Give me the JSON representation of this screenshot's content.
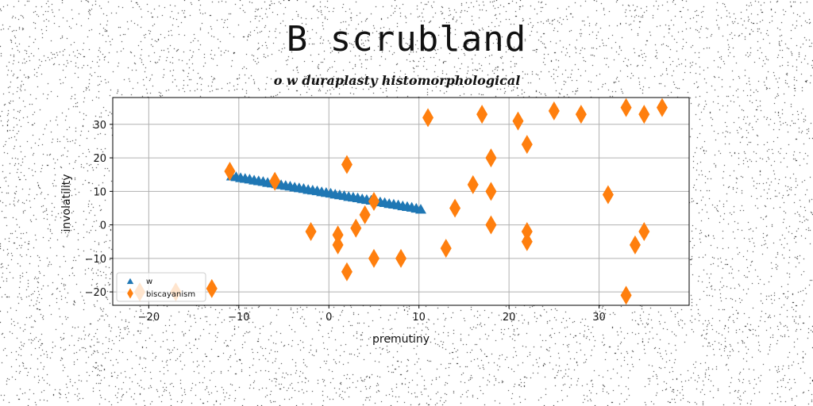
{
  "title": "B scrubland",
  "subtitle": "o w duraplasty histomorphological",
  "chart_data": {
    "type": "scatter",
    "xlabel": "premutiny",
    "ylabel": "involatility",
    "xlim": [
      -24,
      40
    ],
    "ylim": [
      -24,
      38
    ],
    "xticks": [
      -20,
      -10,
      0,
      10,
      20,
      30
    ],
    "yticks": [
      -20,
      -10,
      0,
      10,
      20,
      30
    ],
    "grid": true,
    "legend_position": "lower-left",
    "series": [
      {
        "name": "w",
        "marker": "triangle",
        "color": "#1f77b4",
        "x": [
          -10.8,
          -10.3,
          -9.8,
          -9.3,
          -8.8,
          -8.3,
          -7.8,
          -7.3,
          -6.8,
          -6.3,
          -5.8,
          -5.3,
          -4.8,
          -4.3,
          -3.8,
          -3.3,
          -2.8,
          -2.3,
          -1.8,
          -1.3,
          -0.8,
          -0.3,
          0.2,
          0.7,
          1.2,
          1.7,
          2.2,
          2.7,
          3.2,
          3.7,
          4.2,
          4.7,
          5.2,
          5.7,
          6.2,
          6.7,
          7.2,
          7.7,
          8.2,
          8.7,
          9.2,
          9.7,
          10.2
        ],
        "y": [
          14.5,
          14.3,
          14.0,
          13.8,
          13.6,
          13.3,
          13.1,
          12.9,
          12.6,
          12.4,
          12.2,
          11.9,
          11.7,
          11.5,
          11.2,
          11.0,
          10.8,
          10.5,
          10.3,
          10.1,
          9.8,
          9.6,
          9.4,
          9.1,
          8.9,
          8.7,
          8.4,
          8.2,
          8.0,
          7.7,
          7.5,
          7.3,
          7.0,
          6.8,
          6.6,
          6.3,
          6.1,
          5.9,
          5.6,
          5.4,
          5.2,
          4.9,
          4.6
        ]
      },
      {
        "name": "biscayanism",
        "marker": "thin_diamond",
        "color": "#ff7f0e",
        "x": [
          -11,
          -6,
          -2,
          1,
          1,
          2,
          2,
          3,
          4,
          5,
          5,
          8,
          11,
          13,
          14,
          16,
          17,
          18,
          18,
          18,
          21,
          22,
          22,
          22,
          25,
          28,
          31,
          33,
          33,
          34,
          35,
          35,
          37,
          -13,
          -17,
          -21
        ],
        "y": [
          16,
          13,
          -2,
          -3,
          -6,
          18,
          -14,
          -1,
          3,
          7,
          -10,
          -10,
          32,
          -7,
          5,
          12,
          33,
          20,
          10,
          0,
          31,
          24,
          -2,
          -5,
          34,
          33,
          9,
          35,
          -21,
          -6,
          -2,
          33,
          35,
          -19,
          -20,
          -20
        ]
      }
    ]
  }
}
